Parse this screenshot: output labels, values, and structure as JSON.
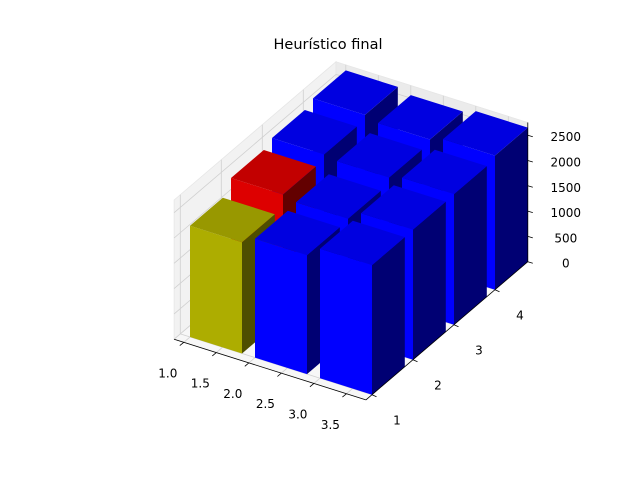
{
  "chart_data": {
    "type": "bar3d",
    "title": "Heurístico final",
    "xlabel": "",
    "ylabel": "",
    "zlabel": "",
    "x_ticks": [
      "1.0",
      "1.5",
      "2.0",
      "2.5",
      "3.0",
      "3.5"
    ],
    "y_ticks": [
      "1",
      "2",
      "3",
      "4"
    ],
    "z_ticks": [
      "0",
      "500",
      "1000",
      "1500",
      "2000",
      "2500"
    ],
    "xlim": [
      0.85,
      3.8
    ],
    "ylim": [
      0.85,
      4.8
    ],
    "zlim": [
      0,
      2750
    ],
    "grid": true,
    "bars": [
      {
        "x": 1,
        "y": 1,
        "value": 2200,
        "color": "#adad00"
      },
      {
        "x": 1,
        "y": 2,
        "value": 2450,
        "color": "#dd0000"
      },
      {
        "x": 1,
        "y": 3,
        "value": 2550,
        "color": "#0000ff"
      },
      {
        "x": 1,
        "y": 4,
        "value": 2640,
        "color": "#0000ff"
      },
      {
        "x": 2,
        "y": 1,
        "value": 2350,
        "color": "#0000ff"
      },
      {
        "x": 2,
        "y": 2,
        "value": 2380,
        "color": "#0000ff"
      },
      {
        "x": 2,
        "y": 3,
        "value": 2500,
        "color": "#0000ff"
      },
      {
        "x": 2,
        "y": 4,
        "value": 2560,
        "color": "#0000ff"
      },
      {
        "x": 3,
        "y": 1,
        "value": 2560,
        "color": "#0000ff"
      },
      {
        "x": 3,
        "y": 2,
        "value": 2570,
        "color": "#0000ff"
      },
      {
        "x": 3,
        "y": 3,
        "value": 2580,
        "color": "#0000ff"
      },
      {
        "x": 3,
        "y": 4,
        "value": 2650,
        "color": "#0000ff"
      }
    ]
  }
}
